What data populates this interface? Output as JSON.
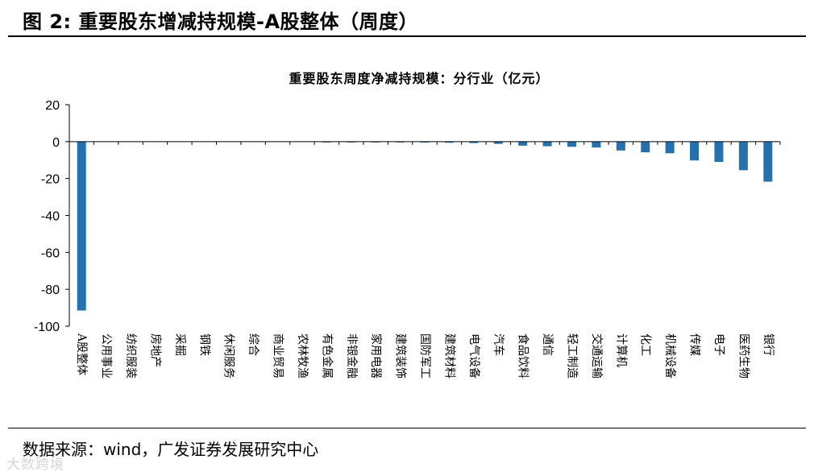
{
  "figure": {
    "title": "图 2:  重要股东增减持规模-A股整体（周度）",
    "source": "数据来源：wind，广发证券发展研究中心",
    "watermark": "大数跨境"
  },
  "colors": {
    "bar": "#2471AE",
    "axis": "#000000",
    "text": "#000000"
  },
  "chart_data": {
    "type": "bar",
    "title": "重要股东周度净减持规模：分行业（亿元）",
    "xlabel": "",
    "ylabel": "",
    "ylim": [
      -100,
      20
    ],
    "yticks": [
      20,
      0,
      -20,
      -40,
      -60,
      -80,
      -100
    ],
    "grid": false,
    "legend": "none",
    "categories": [
      "A股整体",
      "公用事业",
      "纺织服装",
      "房地产",
      "采掘",
      "钢铁",
      "休闲服务",
      "综合",
      "商业贸易",
      "农林牧渔",
      "有色金属",
      "非银金融",
      "家用电器",
      "建筑装饰",
      "国防军工",
      "建筑材料",
      "电气设备",
      "汽车",
      "食品饮料",
      "通信",
      "轻工制造",
      "交通运输",
      "计算机",
      "化工",
      "机械设备",
      "传媒",
      "电子",
      "医药生物",
      "银行"
    ],
    "values": [
      -91.5,
      0,
      0,
      0,
      0,
      0,
      0,
      0,
      0,
      0,
      -0.1,
      -0.1,
      -0.2,
      -0.3,
      -0.5,
      -0.6,
      -0.8,
      -1.2,
      -2.2,
      -2.5,
      -2.8,
      -3.2,
      -4.8,
      -5.8,
      -6.3,
      -10.2,
      -11.0,
      -15.5,
      -21.7
    ]
  }
}
